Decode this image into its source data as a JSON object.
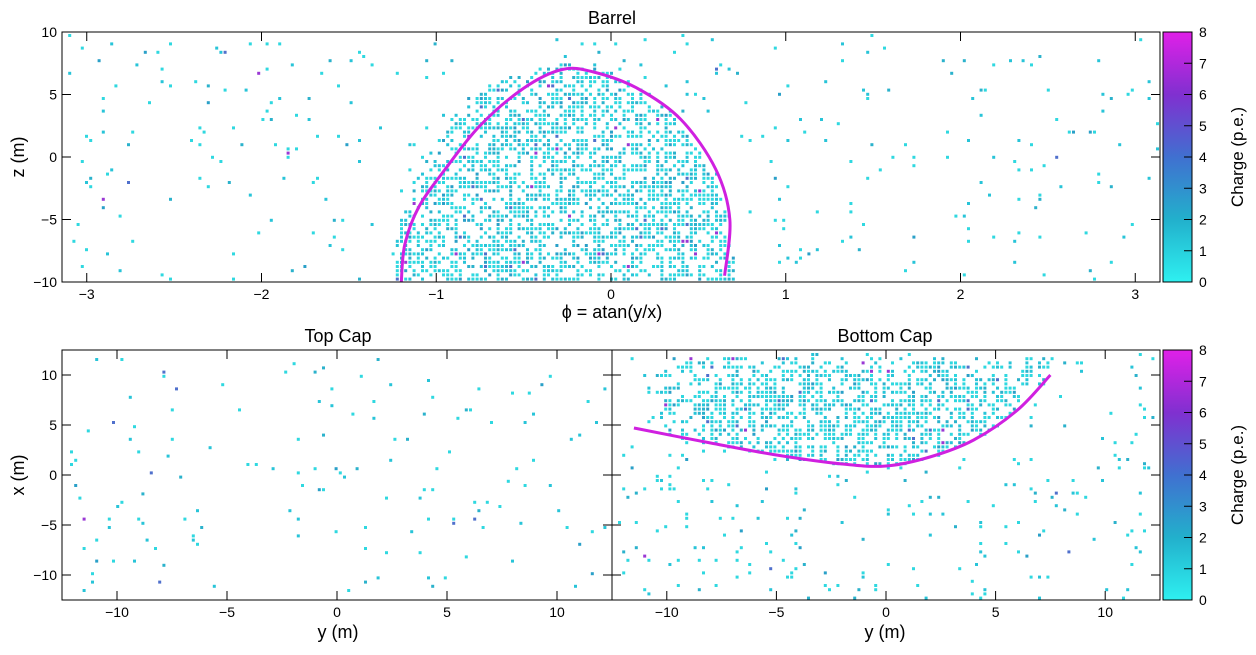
{
  "chart_data": [
    {
      "type": "heatmap",
      "title": "Barrel",
      "xlabel": "ϕ = atan(y/x)",
      "ylabel": "z (m)",
      "xlim": [
        -3.1416,
        3.1416
      ],
      "ylim": [
        -10,
        10
      ],
      "xticks": [
        -3,
        -2,
        -1,
        0,
        1,
        2,
        3
      ],
      "yticks": [
        -10,
        -5,
        0,
        5,
        10
      ],
      "colorbar": {
        "label": "Charge (p.e.)",
        "range": [
          0,
          8
        ],
        "ticks": [
          0,
          1,
          2,
          3,
          4,
          5,
          6,
          7,
          8
        ]
      },
      "overlay_curve": {
        "color": "#d020e0",
        "points": [
          [
            -1.2,
            -10
          ],
          [
            -1.18,
            -7
          ],
          [
            -1.1,
            -4
          ],
          [
            -0.95,
            -1
          ],
          [
            -0.75,
            2.5
          ],
          [
            -0.5,
            5.5
          ],
          [
            -0.28,
            7
          ],
          [
            -0.1,
            6.8
          ],
          [
            0.15,
            5.5
          ],
          [
            0.4,
            3
          ],
          [
            0.6,
            -1
          ],
          [
            0.68,
            -5
          ],
          [
            0.65,
            -9.5
          ]
        ]
      },
      "density_region": {
        "phi_min": -1.25,
        "phi_max": 0.7,
        "z_top": 7.5
      }
    },
    {
      "type": "heatmap",
      "title": "Top Cap",
      "xlabel": "y (m)",
      "ylabel": "x (m)",
      "xlim": [
        -12.5,
        12.5
      ],
      "ylim": [
        -12.5,
        12.5
      ],
      "xticks": [
        -10,
        -5,
        0,
        5,
        10
      ],
      "yticks": [
        -10,
        -5,
        0,
        5,
        10
      ]
    },
    {
      "type": "heatmap",
      "title": "Bottom Cap",
      "xlabel": "y (m)",
      "xlim": [
        -12.5,
        12.5
      ],
      "ylim": [
        -12.5,
        12.5
      ],
      "xticks": [
        -10,
        -5,
        0,
        5,
        10
      ],
      "yticks": [
        -10,
        -5,
        0,
        5,
        10
      ],
      "colorbar": {
        "label": "Charge (p.e.)",
        "range": [
          0,
          8
        ],
        "ticks": [
          0,
          1,
          2,
          3,
          4,
          5,
          6,
          7,
          8
        ]
      },
      "overlay_curve": {
        "color": "#d020e0",
        "points": [
          [
            -11.5,
            4.7
          ],
          [
            -8,
            3.2
          ],
          [
            -5,
            2
          ],
          [
            -2,
            1.1
          ],
          [
            0,
            0.9
          ],
          [
            2,
            1.8
          ],
          [
            4,
            3.5
          ],
          [
            6,
            6.5
          ],
          [
            7.5,
            10
          ]
        ]
      },
      "density_region": {
        "y_min": -10.5,
        "y_max": 7.5,
        "x_top": 12.5
      }
    }
  ]
}
